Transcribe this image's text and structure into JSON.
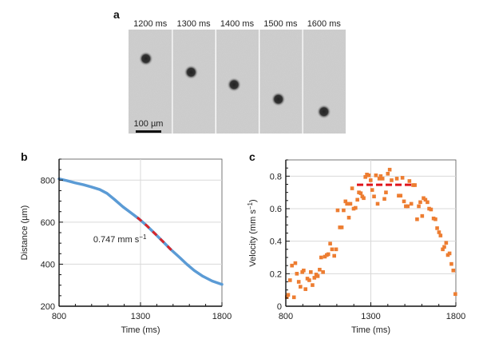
{
  "figure": {
    "panel_a": {
      "letter": "a",
      "frames": [
        {
          "label": "1200 ms",
          "blob_rel": [
            0.4,
            0.28
          ]
        },
        {
          "label": "1300 ms",
          "blob_rel": [
            0.43,
            0.41
          ]
        },
        {
          "label": "1400 ms",
          "blob_rel": [
            0.42,
            0.53
          ]
        },
        {
          "label": "1500 ms",
          "blob_rel": [
            0.44,
            0.67
          ]
        },
        {
          "label": "1600 ms",
          "blob_rel": [
            0.49,
            0.79
          ]
        }
      ],
      "scale_bar_label": "100 µm"
    }
  },
  "chart_data": [
    {
      "panel": "b",
      "type": "line",
      "title": "",
      "xlabel": "Time (ms)",
      "ylabel": "Distance (µm)",
      "xlim": [
        800,
        1800
      ],
      "ylim": [
        200,
        900
      ],
      "xticks": [
        800,
        1300,
        1800
      ],
      "yticks": [
        200,
        400,
        600,
        800
      ],
      "grid": true,
      "series": [
        {
          "name": "distance",
          "color": "#5b9bd5",
          "x": [
            800,
            850,
            898,
            950,
            996,
            1050,
            1094,
            1140,
            1192,
            1240,
            1290,
            1340,
            1388,
            1440,
            1486,
            1540,
            1584,
            1630,
            1682,
            1740,
            1795,
            1800
          ],
          "y": [
            806,
            797,
            787,
            778,
            768,
            755,
            737,
            708,
            673,
            645,
            616,
            582,
            546,
            506,
            470,
            432,
            400,
            370,
            343,
            320,
            305,
            304
          ]
        }
      ],
      "fit_segment": {
        "color": "#d9262b",
        "x": [
          1280,
          1510
        ],
        "style": "dashed"
      },
      "annotations": [
        {
          "text": "0.747 mm s",
          "superscript": "−1",
          "x": 1010,
          "y": 505
        }
      ]
    },
    {
      "panel": "c",
      "type": "scatter",
      "title": "",
      "xlabel": "Time (ms)",
      "ylabel": "Velocity (mm s",
      "ylabel_superscript": "−1",
      "ylabel_suffix": ")",
      "xlim": [
        800,
        1800
      ],
      "ylim": [
        0,
        0.9
      ],
      "xticks": [
        800,
        1300,
        1800
      ],
      "yticks": [
        "0",
        "0.2",
        "0.4",
        "0.6",
        "0.8"
      ],
      "ytick_values": [
        0,
        0.2,
        0.4,
        0.6,
        0.8
      ],
      "grid": true,
      "series": [
        {
          "name": "velocity",
          "color": "#ed7d31",
          "points": [
            [
              806,
              0.056
            ],
            [
              814,
              0.07
            ],
            [
              825,
              0.16
            ],
            [
              836,
              0.25
            ],
            [
              848,
              0.055
            ],
            [
              856,
              0.265
            ],
            [
              865,
              0.2
            ],
            [
              876,
              0.15
            ],
            [
              886,
              0.12
            ],
            [
              897,
              0.21
            ],
            [
              905,
              0.22
            ],
            [
              916,
              0.105
            ],
            [
              927,
              0.17
            ],
            [
              938,
              0.16
            ],
            [
              947,
              0.21
            ],
            [
              957,
              0.13
            ],
            [
              968,
              0.175
            ],
            [
              979,
              0.195
            ],
            [
              988,
              0.185
            ],
            [
              999,
              0.225
            ],
            [
              1008,
              0.3
            ],
            [
              1019,
              0.21
            ],
            [
              1030,
              0.305
            ],
            [
              1041,
              0.315
            ],
            [
              1050,
              0.32
            ],
            [
              1061,
              0.385
            ],
            [
              1072,
              0.35
            ],
            [
              1085,
              0.31
            ],
            [
              1096,
              0.35
            ],
            [
              1105,
              0.59
            ],
            [
              1118,
              0.485
            ],
            [
              1129,
              0.485
            ],
            [
              1140,
              0.59
            ],
            [
              1151,
              0.645
            ],
            [
              1160,
              0.63
            ],
            [
              1171,
              0.545
            ],
            [
              1180,
              0.63
            ],
            [
              1190,
              0.725
            ],
            [
              1199,
              0.6
            ],
            [
              1210,
              0.605
            ],
            [
              1221,
              0.655
            ],
            [
              1230,
              0.7
            ],
            [
              1241,
              0.695
            ],
            [
              1250,
              0.675
            ],
            [
              1258,
              0.665
            ],
            [
              1268,
              0.795
            ],
            [
              1277,
              0.81
            ],
            [
              1288,
              0.805
            ],
            [
              1299,
              0.775
            ],
            [
              1308,
              0.715
            ],
            [
              1319,
              0.675
            ],
            [
              1330,
              0.805
            ],
            [
              1340,
              0.63
            ],
            [
              1350,
              0.785
            ],
            [
              1358,
              0.8
            ],
            [
              1369,
              0.785
            ],
            [
              1380,
              0.66
            ],
            [
              1389,
              0.7
            ],
            [
              1400,
              0.815
            ],
            [
              1411,
              0.84
            ],
            [
              1422,
              0.775
            ],
            [
              1453,
              0.785
            ],
            [
              1464,
              0.68
            ],
            [
              1475,
              0.68
            ],
            [
              1486,
              0.79
            ],
            [
              1495,
              0.645
            ],
            [
              1506,
              0.615
            ],
            [
              1517,
              0.615
            ],
            [
              1527,
              0.77
            ],
            [
              1538,
              0.63
            ],
            [
              1549,
              0.745
            ],
            [
              1559,
              0.745
            ],
            [
              1572,
              0.535
            ],
            [
              1582,
              0.615
            ],
            [
              1591,
              0.64
            ],
            [
              1602,
              0.555
            ],
            [
              1610,
              0.665
            ],
            [
              1621,
              0.655
            ],
            [
              1633,
              0.64
            ],
            [
              1643,
              0.6
            ],
            [
              1654,
              0.595
            ],
            [
              1669,
              0.54
            ],
            [
              1680,
              0.535
            ],
            [
              1690,
              0.48
            ],
            [
              1701,
              0.455
            ],
            [
              1710,
              0.435
            ],
            [
              1723,
              0.35
            ],
            [
              1732,
              0.365
            ],
            [
              1743,
              0.39
            ],
            [
              1753,
              0.315
            ],
            [
              1763,
              0.325
            ],
            [
              1774,
              0.26
            ],
            [
              1785,
              0.22
            ],
            [
              1797,
              0.075
            ]
          ]
        }
      ],
      "mean_line": {
        "color": "#e0141c",
        "y": 0.747,
        "x": [
          1218,
          1551
        ],
        "style": "dashed"
      }
    }
  ]
}
